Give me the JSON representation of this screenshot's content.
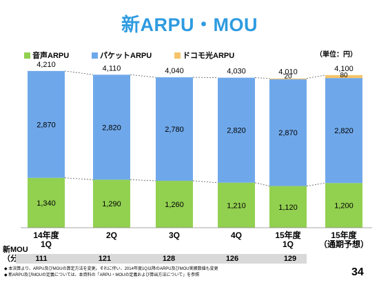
{
  "title": "新ARPU・MOU",
  "unit_label": "（単位：円）",
  "legend": [
    {
      "label": "音声ARPU",
      "color": "#92d050"
    },
    {
      "label": "パケットARPU",
      "color": "#6fa8ea"
    },
    {
      "label": "ドコモ光ARPU",
      "color": "#f5c46a"
    }
  ],
  "chart_data": {
    "type": "bar",
    "stacked": true,
    "categories": [
      [
        "14年度",
        "1Q"
      ],
      [
        "2Q"
      ],
      [
        "3Q"
      ],
      [
        "4Q"
      ],
      [
        "15年度",
        "1Q"
      ],
      [
        "15年度",
        "（通期予想）"
      ]
    ],
    "series": [
      {
        "name": "音声ARPU",
        "values": [
          1340,
          1290,
          1260,
          1210,
          1120,
          1200
        ],
        "color": "#92d050"
      },
      {
        "name": "パケットARPU",
        "values": [
          2870,
          2820,
          2780,
          2820,
          2870,
          2820
        ],
        "color": "#6fa8ea"
      },
      {
        "name": "ドコモ光ARPU",
        "values": [
          0,
          0,
          0,
          0,
          20,
          80
        ],
        "color": "#f5c46a"
      }
    ],
    "labels": {
      "voice": [
        "1,340",
        "1,290",
        "1,260",
        "1,210",
        "1,120",
        "1,200"
      ],
      "packet": [
        "2,870",
        "2,820",
        "2,780",
        "2,820",
        "2,870",
        "2,820"
      ],
      "hikari": [
        "",
        "",
        "",
        "",
        "20",
        "80"
      ],
      "totals": [
        "4,210",
        "4,110",
        "4,040",
        "4,030",
        "4,010",
        "4,100"
      ]
    },
    "ylim": [
      0,
      4300
    ],
    "grid": false
  },
  "mou": {
    "label_line1": "新MOU",
    "label_line2": "（分）",
    "values": [
      "111",
      "121",
      "128",
      "126",
      "129",
      ""
    ]
  },
  "notes": [
    "◆ 本決算より、ARPU及びMOUの算定方法を変更。それに伴い、2014年度1Q以降のARPU及びMOU実績数値も変更",
    "◆ 新ARPU及びMOUの定義については、本資料の「ARPU・MOUの定義および算出方法について」を参照"
  ],
  "page_number": "34"
}
